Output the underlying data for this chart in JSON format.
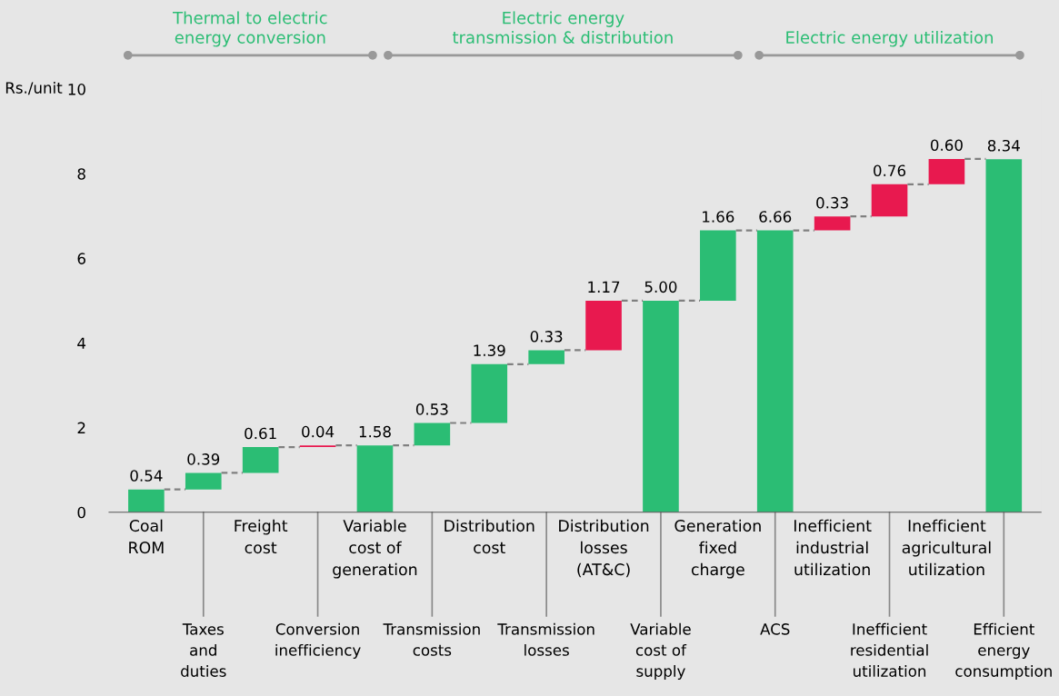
{
  "chart_data": {
    "type": "bar",
    "ylabel": "Rs./unit",
    "categories": [
      "Coal\nROM",
      "Taxes\nand\nduties",
      "Freight\ncost",
      "Conversion\ninefficiency",
      "Variable\ncost of\ngeneration",
      "Transmission\ncosts",
      "Distribution\ncost",
      "Transmission\nlosses",
      "Distribution\nlosses\n(AT&C)",
      "Variable\ncost of\nsupply",
      "Generation\nfixed\ncharge",
      "ACS",
      "Inefficient\nindustrial\nutilization",
      "Inefficient\nresidential\nutilization",
      "Inefficient\nagricultural\nutilization",
      "Efficient\nenergy\nconsumption"
    ],
    "values": [
      0.54,
      0.39,
      0.61,
      0.04,
      1.58,
      0.53,
      1.39,
      0.33,
      1.17,
      5.0,
      1.66,
      6.66,
      0.33,
      0.76,
      0.6,
      8.34
    ],
    "base": [
      0,
      0.54,
      0.93,
      1.54,
      0,
      1.58,
      2.11,
      3.5,
      3.83,
      0,
      5.0,
      0,
      6.66,
      6.99,
      7.75,
      0
    ],
    "colors": [
      "#2bbd74",
      "#2bbd74",
      "#2bbd74",
      "#e8194f",
      "#2bbd74",
      "#2bbd74",
      "#2bbd74",
      "#2bbd74",
      "#e8194f",
      "#2bbd74",
      "#2bbd74",
      "#2bbd74",
      "#e8194f",
      "#e8194f",
      "#e8194f",
      "#2bbd74"
    ],
    "value_labels": [
      "0.54",
      "0.39",
      "0.61",
      "0.04",
      "1.58",
      "0.53",
      "1.39",
      "0.33",
      "1.17",
      "5.00",
      "1.66",
      "6.66",
      "0.33",
      "0.76",
      "0.60",
      "8.34"
    ],
    "ylim": [
      0,
      10
    ],
    "yticks": [
      0,
      2,
      4,
      6,
      8,
      10
    ],
    "annotations": [
      "Thermal to electric\nenergy conversion",
      "Electric energy\ntransmission & distribution",
      "Electric energy utilization"
    ],
    "grid": false
  }
}
